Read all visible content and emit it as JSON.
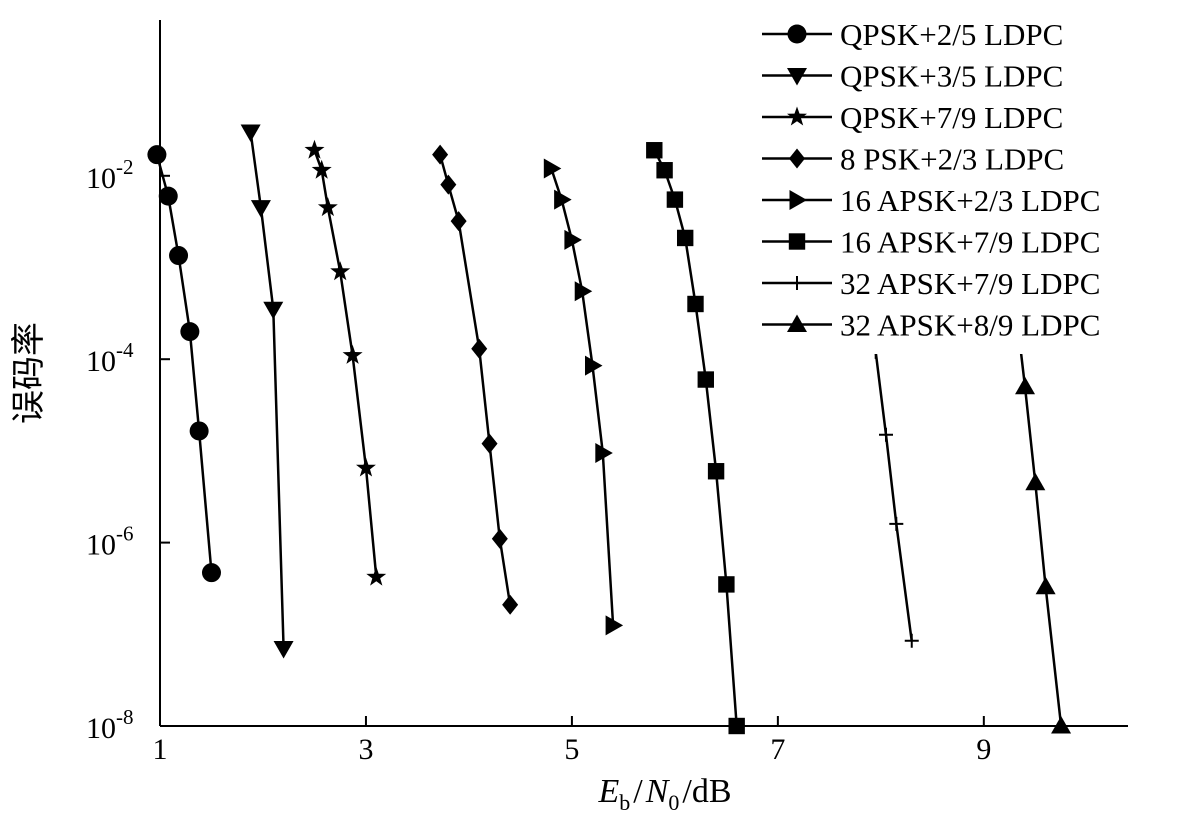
{
  "chart_data": {
    "type": "line",
    "title": "",
    "xlabel": {
      "E": "E",
      "b": "b",
      "mid": "/",
      "N": "N",
      "zero": "0",
      "tail": "/dB"
    },
    "ylabel": "误码率",
    "yscale": "log",
    "xlim": [
      1,
      10.4
    ],
    "ylim": [
      1e-08,
      0.5
    ],
    "x_ticks": [
      1,
      3,
      5,
      7,
      9
    ],
    "y_ticks": [
      {
        "value": 0.01,
        "base": "10",
        "exp": "-2"
      },
      {
        "value": 0.0001,
        "base": "10",
        "exp": "-4"
      },
      {
        "value": 1e-06,
        "base": "10",
        "exp": "-6"
      },
      {
        "value": 1e-08,
        "base": "10",
        "exp": "-8"
      }
    ],
    "grid": false,
    "legend_position": "top-right",
    "series": [
      {
        "name": "QPSK+2/5 LDPC",
        "marker": "circle",
        "x": [
          0.97,
          1.08,
          1.18,
          1.29,
          1.38,
          1.5
        ],
        "y": [
          0.017,
          0.006,
          0.00135,
          0.0002,
          1.65e-05,
          4.7e-07
        ]
      },
      {
        "name": "QPSK+3/5 LDPC",
        "marker": "triangle-down",
        "x": [
          1.88,
          1.98,
          2.1,
          2.2
        ],
        "y": [
          0.03,
          0.0045,
          0.00035,
          7e-08
        ]
      },
      {
        "name": "QPSK+7/9 LDPC",
        "marker": "star",
        "x": [
          2.5,
          2.57,
          2.63,
          2.75,
          2.87,
          3.0,
          3.1
        ],
        "y": [
          0.019,
          0.0115,
          0.0045,
          0.0009,
          0.00011,
          6.5e-06,
          4.2e-07
        ]
      },
      {
        "name": "8 PSK+2/3 LDPC",
        "marker": "diamond",
        "x": [
          3.72,
          3.8,
          3.9,
          4.1,
          4.2,
          4.3,
          4.4
        ],
        "y": [
          0.017,
          0.008,
          0.0032,
          0.00013,
          1.2e-05,
          1.1e-06,
          2.1e-07
        ]
      },
      {
        "name": "16 APSK+2/3 LDPC",
        "marker": "triangle-right",
        "x": [
          4.8,
          4.9,
          5.0,
          5.1,
          5.2,
          5.3,
          5.4
        ],
        "y": [
          0.012,
          0.0055,
          0.002,
          0.00055,
          8.5e-05,
          9.5e-06,
          1.25e-07
        ]
      },
      {
        "name": "16 APSK+7/9 LDPC",
        "marker": "square",
        "x": [
          5.8,
          5.9,
          6.0,
          6.1,
          6.2,
          6.3,
          6.4,
          6.5,
          6.6
        ],
        "y": [
          0.019,
          0.0115,
          0.0055,
          0.0021,
          0.0004,
          6e-05,
          6e-06,
          3.5e-07,
          1e-08
        ]
      },
      {
        "name": "32 APSK+7/9 LDPC",
        "marker": "plus",
        "x": [
          7.95,
          8.05,
          8.15,
          8.3
        ],
        "y": [
          0.00012,
          1.5e-05,
          1.6e-06,
          8.5e-08
        ]
      },
      {
        "name": "32 APSK+8/9 LDPC",
        "marker": "triangle-up",
        "x": [
          9.35,
          9.4,
          9.5,
          9.6,
          9.75
        ],
        "y": [
          0.00015,
          5e-05,
          4.5e-06,
          3.3e-07,
          1e-08
        ]
      }
    ]
  }
}
